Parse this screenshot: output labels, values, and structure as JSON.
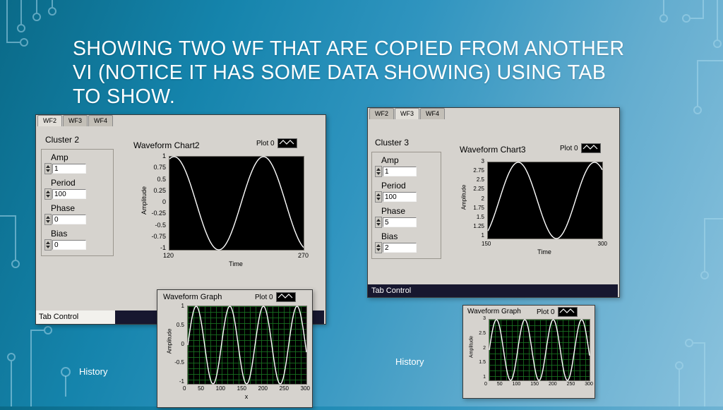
{
  "slide": {
    "title": "SHOWING TWO WF THAT ARE COPIED FROM ANOTHER\nVI (NOTICE IT HAS SOME DATA SHOWING) USING TAB\nTO SHOW.",
    "history_labels": {
      "left": "History",
      "right": "History"
    },
    "colors": {
      "bg_top_left": "#0a6a88",
      "bg_bottom_right": "#8ac2dd",
      "panel_gray": "#d6d3ce",
      "plot_bg": "#000000",
      "trace": "#ffffff",
      "grid_green": "#187020",
      "strip_dark": "#17172f"
    }
  },
  "panel_left": {
    "tabs": [
      "WF2",
      "WF3",
      "WF4"
    ],
    "active_tab": "WF2",
    "cluster_label": "Cluster 2",
    "fields": [
      {
        "label": "Amp",
        "value": "1"
      },
      {
        "label": "Period",
        "value": "100"
      },
      {
        "label": "Phase",
        "value": "0"
      },
      {
        "label": "Bias",
        "value": "0"
      }
    ],
    "tab_control_label": "Tab Control"
  },
  "panel_right": {
    "tabs": [
      "WF2",
      "WF3",
      "WF4"
    ],
    "active_tab": "WF3",
    "cluster_label": "Cluster 3",
    "fields": [
      {
        "label": "Amp",
        "value": "1"
      },
      {
        "label": "Period",
        "value": "100"
      },
      {
        "label": "Phase",
        "value": "5"
      },
      {
        "label": "Bias",
        "value": "2"
      }
    ],
    "tab_control_label": "Tab Control"
  },
  "chart_data": [
    {
      "id": "waveform-chart2",
      "type": "line",
      "title": "Waveform Chart2",
      "legend": "Plot 0",
      "xlabel": "Time",
      "ylabel": "Amplitude",
      "xlim": [
        120,
        270
      ],
      "ylim": [
        -1,
        1
      ],
      "x_ticks": [
        "120",
        "270"
      ],
      "y_ticks": [
        "1",
        "0.75",
        "0.5",
        "0.25",
        "0",
        "-0.25",
        "-0.5",
        "-0.75",
        "-1"
      ],
      "grid": false,
      "bg": "#000000",
      "line_color": "#ffffff",
      "series": [
        {
          "name": "Plot 0",
          "shape": "sine",
          "amp": 1,
          "period": 100,
          "phase": 1.25,
          "bias": 0
        }
      ]
    },
    {
      "id": "waveform-chart3",
      "type": "line",
      "title": "Waveform Chart3",
      "legend": "Plot 0",
      "xlabel": "Time",
      "ylabel": "Amplitude",
      "xlim": [
        150,
        300
      ],
      "ylim": [
        1,
        3
      ],
      "x_ticks": [
        "150",
        "300"
      ],
      "y_ticks": [
        "3",
        "2.75",
        "2.5",
        "2.25",
        "2",
        "1.75",
        "1.5",
        "1.25",
        "1"
      ],
      "grid": false,
      "bg": "#000000",
      "line_color": "#ffffff",
      "series": [
        {
          "name": "Plot 0",
          "shape": "sine",
          "amp": 1,
          "period": 100,
          "phase": -0.93,
          "bias": 2
        }
      ]
    },
    {
      "id": "waveform-graph-left",
      "type": "line",
      "title": "Waveform Graph",
      "legend": "Plot 0",
      "xlabel": "x",
      "ylabel": "Amplitude",
      "xlim": [
        0,
        300
      ],
      "ylim": [
        -1,
        1
      ],
      "x_ticks": [
        "0",
        "50",
        "100",
        "150",
        "200",
        "250",
        "300"
      ],
      "y_ticks": [
        "1",
        "0.5",
        "0",
        "-0.5",
        "-1"
      ],
      "grid": true,
      "bg": "#000000",
      "line_color": "#ffffff",
      "series": [
        {
          "name": "Plot 0",
          "shape": "sine",
          "amp": 1,
          "period": 85,
          "phase": 0,
          "bias": 0
        }
      ]
    },
    {
      "id": "waveform-graph-right",
      "type": "line",
      "title": "Waveform Graph",
      "legend": "Plot 0",
      "xlabel": "",
      "ylabel": "Amplitude",
      "xlim": [
        0,
        300
      ],
      "ylim": [
        1,
        3
      ],
      "x_ticks": [
        "0",
        "50",
        "100",
        "150",
        "200",
        "250",
        "300"
      ],
      "y_ticks": [
        "3",
        "2.5",
        "2",
        "1.5",
        "1"
      ],
      "grid": true,
      "bg": "#000000",
      "line_color": "#ffffff",
      "series": [
        {
          "name": "Plot 0",
          "shape": "sine",
          "amp": 1,
          "period": 85,
          "phase": 0,
          "bias": 2
        }
      ]
    }
  ]
}
